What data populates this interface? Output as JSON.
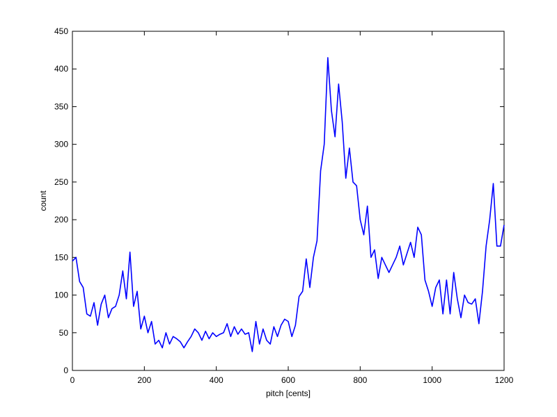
{
  "chart_data": {
    "type": "line",
    "xlabel": "pitch [cents]",
    "ylabel": "count",
    "color": "#0000ff",
    "x": [
      0,
      10,
      20,
      30,
      40,
      50,
      60,
      70,
      80,
      90,
      100,
      110,
      120,
      130,
      140,
      150,
      160,
      170,
      180,
      190,
      200,
      210,
      220,
      230,
      240,
      250,
      260,
      270,
      280,
      290,
      300,
      310,
      320,
      330,
      340,
      350,
      360,
      370,
      380,
      390,
      400,
      410,
      420,
      430,
      440,
      450,
      460,
      470,
      480,
      490,
      500,
      510,
      520,
      530,
      540,
      550,
      560,
      570,
      580,
      590,
      600,
      610,
      620,
      630,
      640,
      650,
      660,
      670,
      680,
      690,
      700,
      710,
      720,
      730,
      740,
      750,
      760,
      770,
      780,
      790,
      800,
      810,
      820,
      830,
      840,
      850,
      860,
      870,
      880,
      890,
      900,
      910,
      920,
      930,
      940,
      950,
      960,
      970,
      980,
      990,
      1000,
      1010,
      1020,
      1030,
      1040,
      1050,
      1060,
      1070,
      1080,
      1090,
      1100,
      1110,
      1120,
      1130,
      1140,
      1150,
      1160,
      1170,
      1180,
      1190,
      1200
    ],
    "values": [
      145,
      150,
      118,
      110,
      75,
      72,
      90,
      60,
      88,
      100,
      70,
      82,
      85,
      100,
      132,
      95,
      157,
      85,
      105,
      55,
      72,
      50,
      65,
      35,
      40,
      30,
      50,
      35,
      45,
      42,
      38,
      30,
      38,
      45,
      55,
      50,
      40,
      52,
      42,
      50,
      45,
      48,
      50,
      62,
      45,
      58,
      48,
      55,
      48,
      50,
      25,
      65,
      35,
      55,
      40,
      35,
      58,
      45,
      60,
      68,
      65,
      45,
      60,
      98,
      105,
      148,
      110,
      150,
      172,
      265,
      300,
      415,
      345,
      310,
      380,
      330,
      255,
      295,
      250,
      245,
      200,
      180,
      218,
      150,
      160,
      122,
      150,
      140,
      130,
      140,
      150,
      165,
      140,
      155,
      170,
      150,
      190,
      180,
      120,
      105,
      85,
      110,
      120,
      75,
      120,
      75,
      130,
      95,
      70,
      100,
      90,
      88,
      95,
      62,
      105,
      165,
      200,
      248,
      165,
      165,
      193
    ],
    "xlim": [
      0,
      1200
    ],
    "xticks": [
      0,
      200,
      400,
      600,
      800,
      1000,
      1200
    ],
    "ylim": [
      0,
      450
    ],
    "yticks": [
      0,
      50,
      100,
      150,
      200,
      250,
      300,
      350,
      400,
      450
    ]
  }
}
